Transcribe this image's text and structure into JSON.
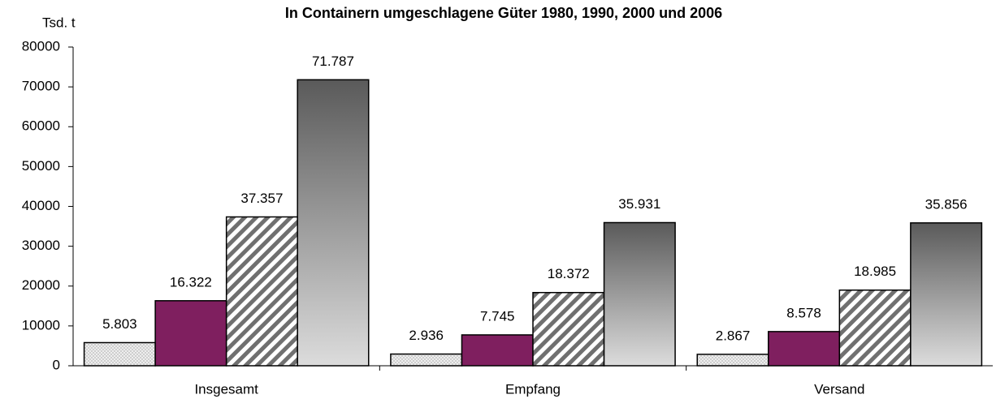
{
  "chart_data": {
    "type": "bar",
    "title": "In Containern umgeschlagene Güter 1980, 1990, 2000 und 2006",
    "y_label": "Tsd. t",
    "categories": [
      "Insgesamt",
      "Empfang",
      "Versand"
    ],
    "series": [
      {
        "color": "#b8b8b8",
        "fill_style": "dots",
        "values": [
          5803,
          2936,
          2867
        ],
        "value_labels": [
          "5.803",
          "2.936",
          "2.867"
        ]
      },
      {
        "color": "#7f1f5f",
        "fill_style": "solid",
        "values": [
          16322,
          7745,
          8578
        ],
        "value_labels": [
          "16.322",
          "7.745",
          "8.578"
        ]
      },
      {
        "color": "#707070",
        "fill_style": "stripes",
        "values": [
          37357,
          18372,
          18985
        ],
        "value_labels": [
          "37.357",
          "18.372",
          "18.985"
        ]
      },
      {
        "color": "#5a5a5a",
        "fill_style": "gradient",
        "values": [
          71787,
          35931,
          35856
        ],
        "value_labels": [
          "71.787",
          "35.931",
          "35.856"
        ]
      }
    ],
    "ylim": [
      0,
      80000
    ],
    "yticks": [
      0,
      10000,
      20000,
      30000,
      40000,
      50000,
      60000,
      70000,
      80000
    ],
    "grid": false
  }
}
